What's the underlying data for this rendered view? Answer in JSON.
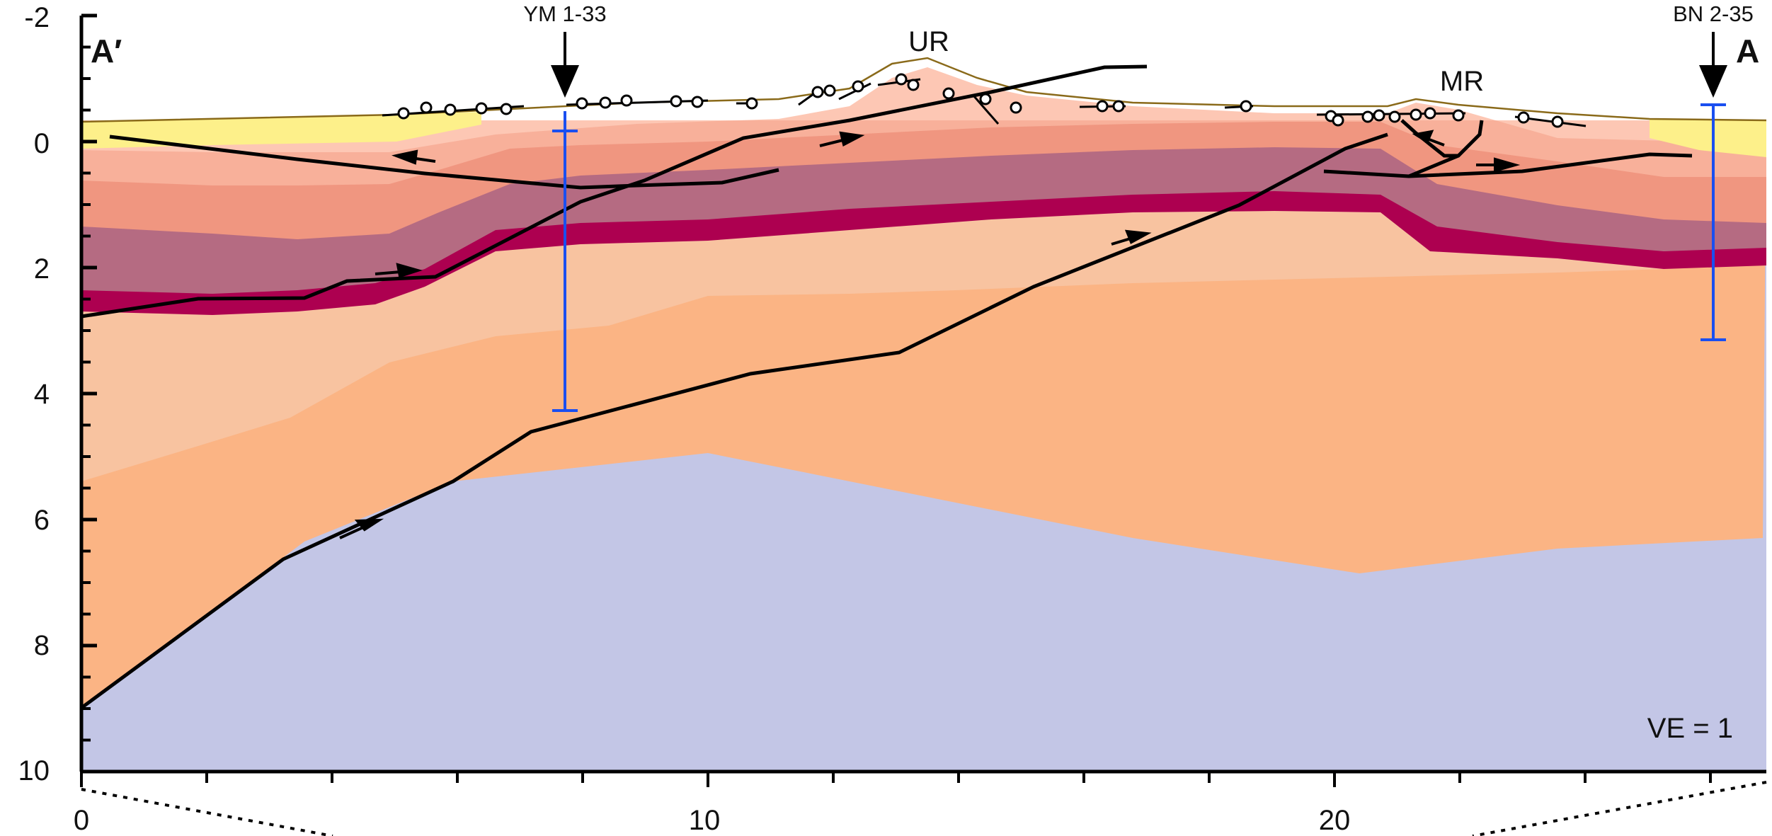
{
  "section": {
    "end_left": "A′",
    "end_right": "A",
    "vertical_exaggeration": "VE = 1",
    "x_axis": {
      "ticks": [
        "0",
        "10",
        "20"
      ],
      "min": 0,
      "max": 27,
      "tick_step": 2
    },
    "y_axis": {
      "ticks": [
        "-2",
        "0",
        "2",
        "4",
        "6",
        "8",
        "10"
      ],
      "min": -2,
      "max": 10,
      "minor_step": 0.5
    }
  },
  "wells": [
    {
      "label": "YM 1-33",
      "x_km": 7.8,
      "top_km": -0.2,
      "tie_top_km": 0.2,
      "tie_bottom_km": 4.3
    },
    {
      "label": "BN 2-35",
      "x_km": 26.0,
      "top_km": -0.6,
      "tie_top_km": -0.6,
      "tie_bottom_km": 3.15
    }
  ],
  "structures": [
    {
      "label": "UR",
      "x_km": 13.8,
      "y_km": -1.6
    },
    {
      "label": "MR",
      "x_km": 22.2,
      "y_km": -1.0
    }
  ],
  "colors": {
    "basement": "#c3c6e6",
    "unit_deep": "#fbb484",
    "unit_mid": "#f8c3a0",
    "unit_red": "#ad0050",
    "unit_purple": "#b56b82",
    "unit_salmon": "#f09680",
    "unit_light": "#f8b09a",
    "unit_pale": "#fdc7b4",
    "surface_fill": "#fdf08a",
    "fault": "#000000",
    "well_tie": "#1a4ff0"
  }
}
